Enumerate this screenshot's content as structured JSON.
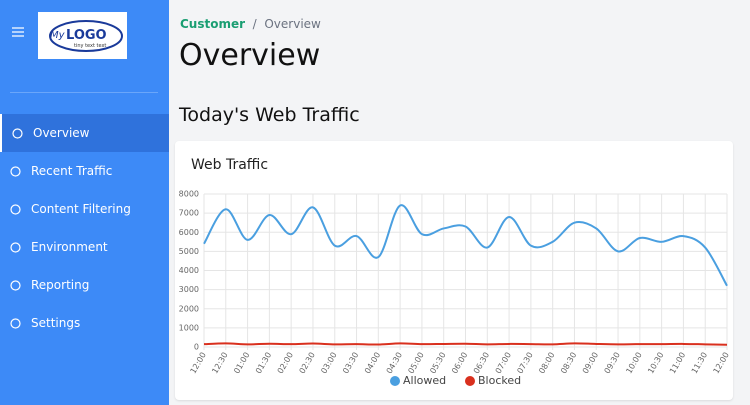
{
  "logo": {
    "brand_prefix": "My",
    "brand": "LOGO",
    "tagline": "tiny text text"
  },
  "nav": {
    "items": [
      "Overview",
      "Recent Traffic",
      "Content Filtering",
      "Environment",
      "Reporting",
      "Settings"
    ],
    "active_index": 0
  },
  "breadcrumb": {
    "parent": "Customer",
    "current": "Overview"
  },
  "page_title": "Overview",
  "section_title": "Today's Web Traffic",
  "card_title": "Web Traffic",
  "chart_data": {
    "type": "line",
    "categories": [
      "12:00",
      "12:30",
      "01:00",
      "01:30",
      "02:00",
      "02:30",
      "03:00",
      "03:30",
      "04:00",
      "04:30",
      "05:00",
      "05:30",
      "06:00",
      "06:30",
      "07:00",
      "07:30",
      "08:00",
      "08:30",
      "09:00",
      "09:30",
      "10:00",
      "10:30",
      "11:00",
      "11:30",
      "12:00"
    ],
    "series": [
      {
        "name": "Allowed",
        "color": "#4a9fe0",
        "values": [
          5400,
          7200,
          5600,
          6900,
          5900,
          7300,
          5300,
          5800,
          4700,
          7400,
          5900,
          6200,
          6300,
          5200,
          6800,
          5300,
          5500,
          6500,
          6200,
          5000,
          5700,
          5500,
          5800,
          5200,
          3200
        ]
      },
      {
        "name": "Blocked",
        "color": "#d9301e",
        "values": [
          150,
          190,
          140,
          170,
          150,
          180,
          140,
          150,
          130,
          190,
          150,
          160,
          170,
          140,
          160,
          150,
          140,
          190,
          160,
          140,
          150,
          150,
          160,
          140,
          120
        ]
      }
    ],
    "ylim": [
      0,
      8000
    ],
    "yticks": [
      0,
      1000,
      2000,
      3000,
      4000,
      5000,
      6000,
      7000,
      8000
    ],
    "grid": true,
    "legend": "bottom"
  }
}
